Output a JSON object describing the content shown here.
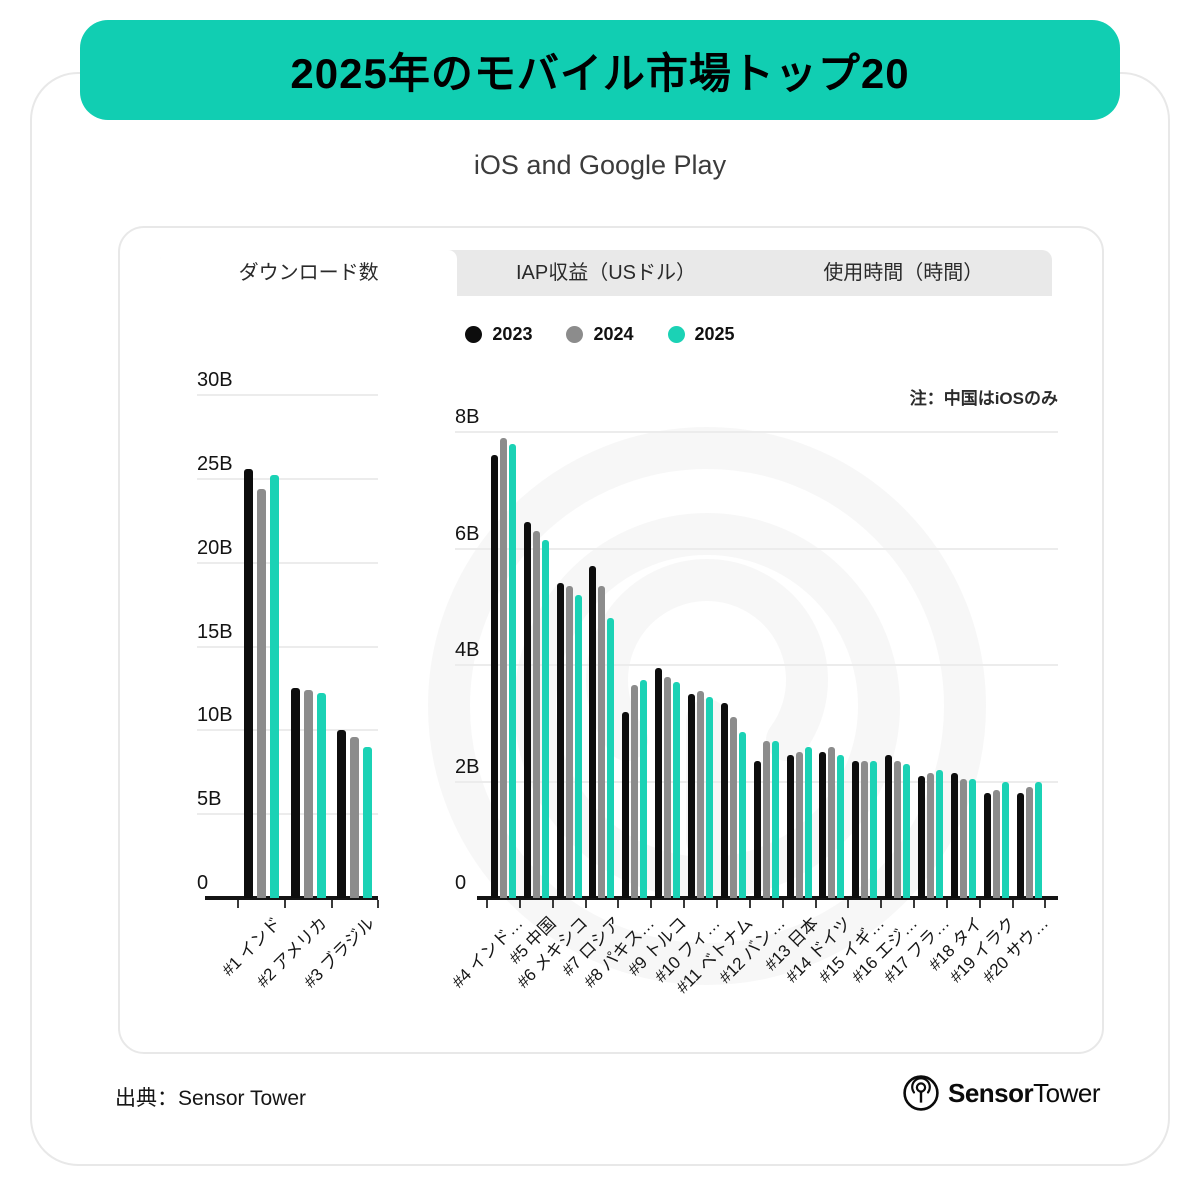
{
  "title": "2025年のモバイル市場トップ20",
  "subtitle": "iOS and Google Play",
  "tabs": [
    {
      "label": "ダウンロード数",
      "active": true
    },
    {
      "label": "IAP収益（USドル）",
      "active": false
    },
    {
      "label": "使用時間（時間）",
      "active": false
    }
  ],
  "legend": [
    {
      "label": "2023",
      "color": "#0d0d0d"
    },
    {
      "label": "2024",
      "color": "#8c8c8c"
    },
    {
      "label": "2025",
      "color": "#1bd2b5"
    }
  ],
  "note": "注：中国はiOSのみ",
  "colors": {
    "banner_teal": "#11ceb2",
    "tab_bar_bg": "#e9e9e9",
    "grid": "#ececec",
    "axis": "#141414",
    "series_2023": "#0d0d0d",
    "series_2024": "#8c8c8c",
    "series_2025": "#1bd2b5"
  },
  "footer": {
    "source": "出典：Sensor Tower",
    "logo_bold": "Sensor",
    "logo_regular": "Tower"
  },
  "chart_data": [
    {
      "type": "bar",
      "categories": [
        "#1 インド",
        "#2 アメリカ",
        "#3 ブラジル"
      ],
      "series": [
        {
          "name": "2023",
          "color": "#0d0d0d",
          "values": [
            25.6,
            12.5,
            10.0
          ]
        },
        {
          "name": "2024",
          "color": "#8c8c8c",
          "values": [
            24.4,
            12.4,
            9.6
          ]
        },
        {
          "name": "2025",
          "color": "#1bd2b5",
          "values": [
            25.2,
            12.2,
            9.0
          ]
        }
      ],
      "ylim": [
        0,
        30
      ],
      "yticks": [
        {
          "value": 0,
          "label": "0"
        },
        {
          "value": 5,
          "label": "5B"
        },
        {
          "value": 10,
          "label": "10B"
        },
        {
          "value": 15,
          "label": "15B"
        },
        {
          "value": 20,
          "label": "20B"
        },
        {
          "value": 25,
          "label": "25B"
        },
        {
          "value": 30,
          "label": "30B"
        }
      ],
      "grid": true,
      "legend_position": "top",
      "units": "B downloads"
    },
    {
      "type": "bar",
      "categories": [
        "#4 インド…",
        "#5 中国",
        "#6 メキシコ",
        "#7 ロシア",
        "#8 パキス…",
        "#9 トルコ",
        "#10 フィ…",
        "#11 ベトナム",
        "#12 バン…",
        "#13 日本",
        "#14 ドイツ",
        "#15 イギ…",
        "#16 エジ…",
        "#17 フラ…",
        "#18 タイ",
        "#19 イラク",
        "#20 サウ…"
      ],
      "series": [
        {
          "name": "2023",
          "color": "#0d0d0d",
          "values": [
            7.6,
            6.45,
            5.4,
            5.7,
            3.2,
            3.95,
            3.5,
            3.35,
            2.35,
            2.45,
            2.5,
            2.35,
            2.45,
            2.1,
            2.15,
            1.8,
            1.8
          ]
        },
        {
          "name": "2024",
          "color": "#8c8c8c",
          "values": [
            7.9,
            6.3,
            5.35,
            5.35,
            3.65,
            3.8,
            3.55,
            3.1,
            2.7,
            2.5,
            2.6,
            2.35,
            2.35,
            2.15,
            2.05,
            1.85,
            1.9
          ]
        },
        {
          "name": "2025",
          "color": "#1bd2b5",
          "values": [
            7.8,
            6.15,
            5.2,
            4.8,
            3.75,
            3.7,
            3.45,
            2.85,
            2.7,
            2.6,
            2.45,
            2.35,
            2.3,
            2.2,
            2.05,
            2.0,
            2.0
          ]
        }
      ],
      "ylim": [
        0,
        8
      ],
      "yticks": [
        {
          "value": 0,
          "label": "0"
        },
        {
          "value": 2,
          "label": "2B"
        },
        {
          "value": 4,
          "label": "4B"
        },
        {
          "value": 6,
          "label": "6B"
        },
        {
          "value": 8,
          "label": "8B"
        }
      ],
      "grid": true,
      "legend_position": "top",
      "units": "B downloads"
    }
  ]
}
